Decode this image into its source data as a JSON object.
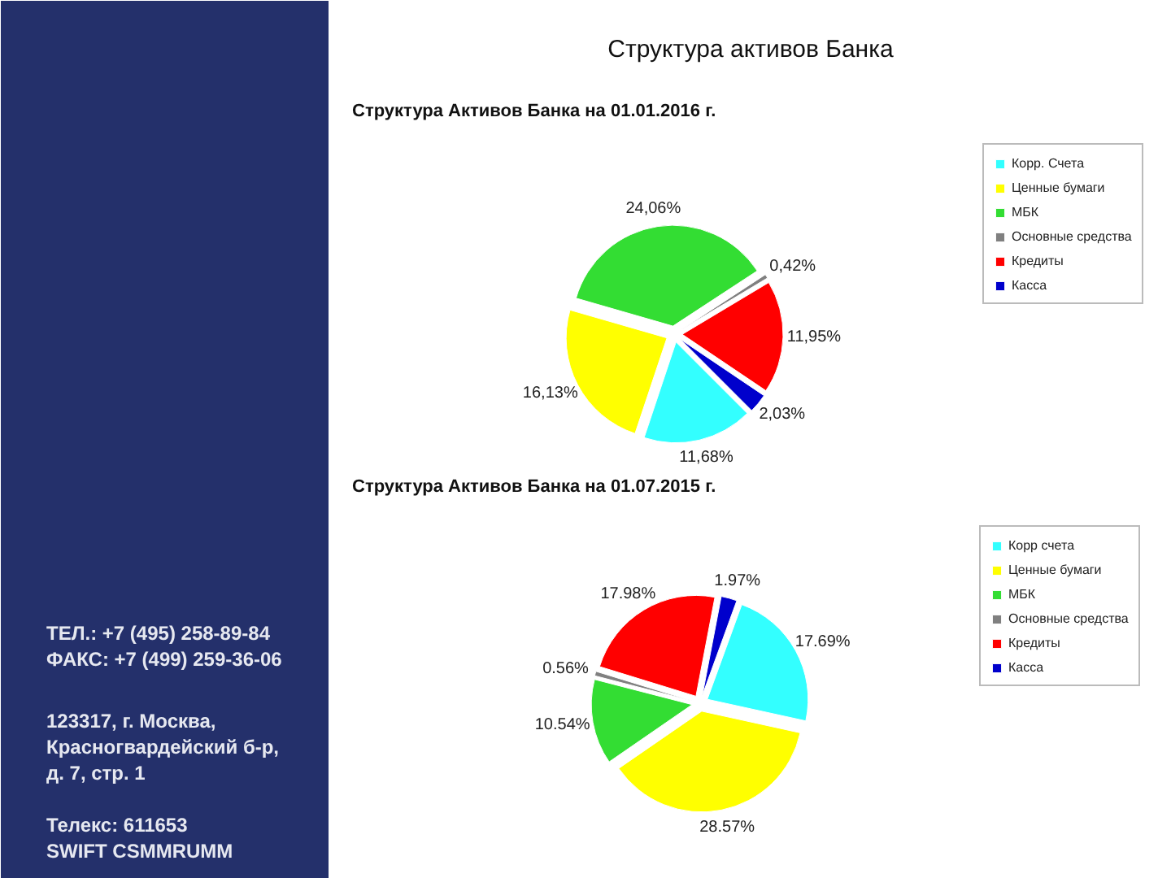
{
  "chart_data": [
    {
      "type": "pie",
      "title": "Структура активов Банка",
      "subtitle": "Структура Активов Банка на 01.01.2016 г.",
      "categories": [
        "Корр. Счета",
        "Ценные бумаги",
        "МБК",
        "Основные средства",
        "Кредиты",
        "Касса"
      ],
      "values": [
        11.68,
        16.13,
        24.06,
        0.42,
        11.95,
        2.03
      ],
      "colors": [
        "#33ffff",
        "#ffff00",
        "#33dd33",
        "#808080",
        "#ff0000",
        "#0000cc"
      ],
      "value_labels": [
        "11,68%",
        "16,13%",
        "24,06%",
        "0,42%",
        "11,95%",
        "2,03%"
      ],
      "legend": "top right"
    },
    {
      "type": "pie",
      "title": "Структура Активов Банка на 01.07.2015 г.",
      "categories": [
        "Корр счета",
        "Ценные бумаги",
        "МБК",
        "Основные средства",
        "Кредиты",
        "Касса"
      ],
      "values": [
        17.69,
        28.57,
        10.54,
        0.56,
        17.98,
        1.97
      ],
      "colors": [
        "#33ffff",
        "#ffff00",
        "#33dd33",
        "#808080",
        "#ff0000",
        "#0000cc"
      ],
      "value_labels": [
        "17.69%",
        "28.57%",
        "10.54%",
        "0.56%",
        "17.98%",
        "1.97%"
      ],
      "legend": "top right"
    },
    {
      "type": "other",
      "annotations": [
        "ТЕЛ.: +7 (495) 258-89-84",
        "ФАКС: +7 (499) 259-36-06",
        "123317, г. Москва,",
        "Красногвардейский б-р,",
        "д. 7, стр. 1",
        "Телекс: 611653",
        "SWIFT CSMMRUMM"
      ]
    }
  ]
}
